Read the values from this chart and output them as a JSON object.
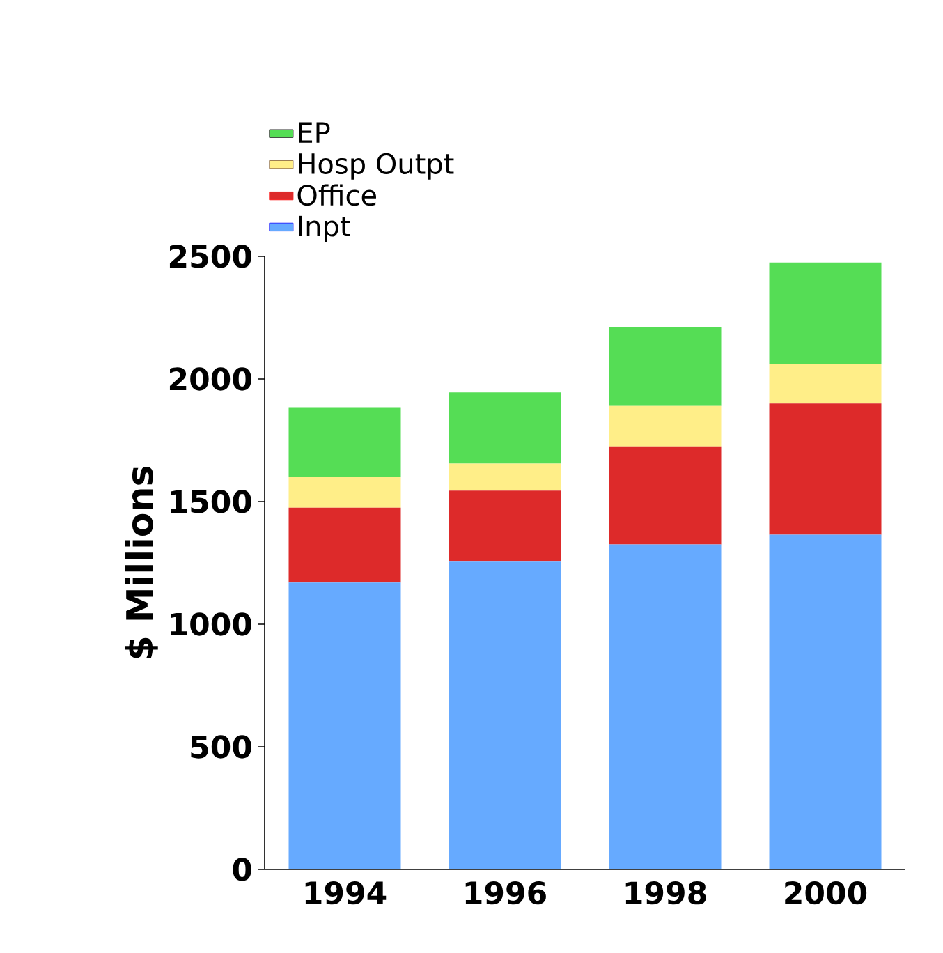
{
  "chart_data": {
    "type": "bar",
    "stacked": true,
    "ylabel": "$ Millions",
    "categories": [
      "1994",
      "1996",
      "1998",
      "2000"
    ],
    "series": [
      {
        "name": "Inpt",
        "color": "#66aaff",
        "values": [
          1170,
          1255,
          1325,
          1365
        ]
      },
      {
        "name": "Office",
        "color": "#dd2a2a",
        "values": [
          305,
          290,
          400,
          535
        ]
      },
      {
        "name": "Hosp Outpt",
        "color": "#ffee88",
        "values": [
          125,
          110,
          165,
          160
        ]
      },
      {
        "name": "EP",
        "color": "#55dd55",
        "values": [
          285,
          290,
          320,
          415
        ]
      }
    ],
    "ylim": [
      0,
      2500
    ],
    "yticks": [
      0,
      500,
      1000,
      1500,
      2000,
      2500
    ],
    "legend": "top left"
  }
}
